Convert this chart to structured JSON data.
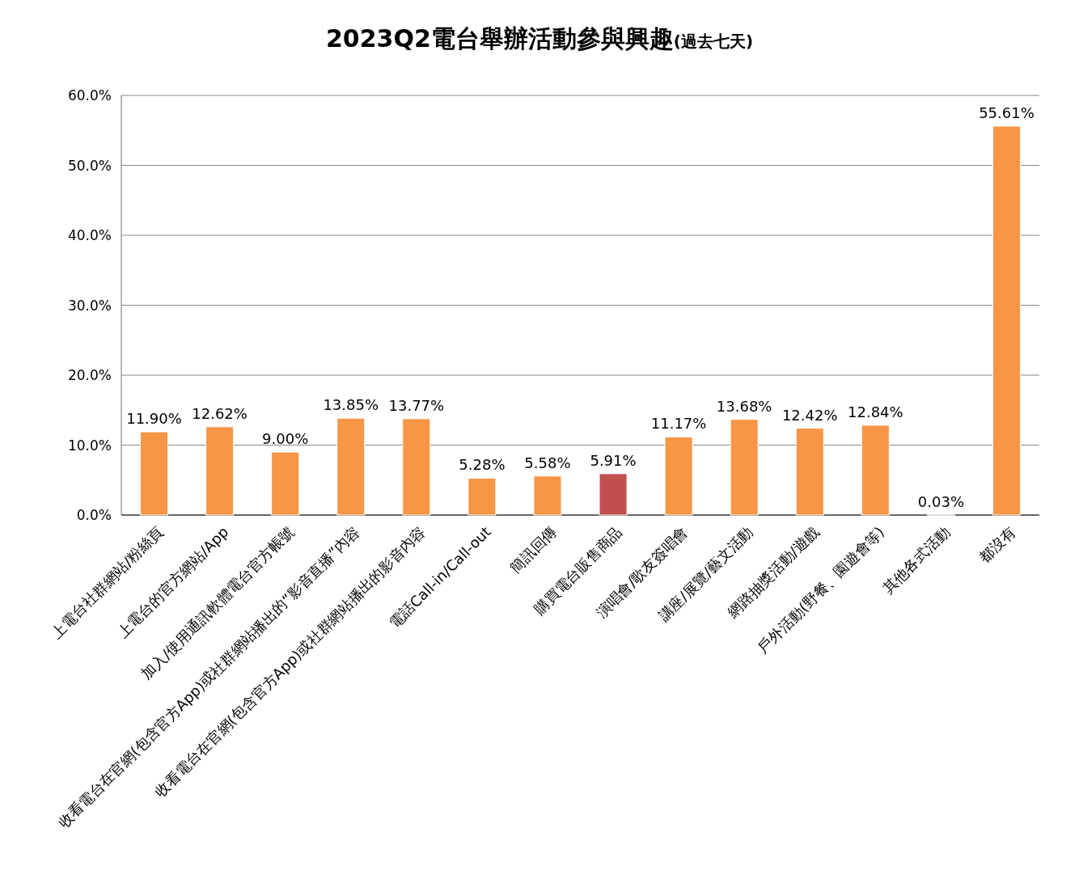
{
  "chart_data": {
    "type": "bar",
    "title": "2023Q2電台舉辦活動參與興趣",
    "subtitle": "(過去七天)",
    "categories": [
      "上電台社群網站/粉絲頁",
      "上電台的官方網站/App",
      "加入/使用通訊軟體電台官方帳號",
      "收看電台在官網(包含官方App)或社群網站播出的“影音直播”內容",
      "收看電台在官網(包含官方App)或社群網站播出的影音內容",
      "電話Call-in/Call-out",
      "簡訊回傳",
      "購買電台販售商品",
      "演唱會/歌友簽唱會",
      "講座/展覽/藝文活動",
      "網路抽獎活動/遊戲",
      "戶外活動(野餐、園遊會等)",
      "其他各式活動",
      "都沒有"
    ],
    "values": [
      11.9,
      12.62,
      9.0,
      13.85,
      13.77,
      5.28,
      5.58,
      5.91,
      11.17,
      13.68,
      12.42,
      12.84,
      0.03,
      55.61
    ],
    "value_labels": [
      "11.90%",
      "12.62%",
      "9.00%",
      "13.85%",
      "13.77%",
      "5.28%",
      "5.58%",
      "5.91%",
      "11.17%",
      "13.68%",
      "12.42%",
      "12.84%",
      "0.03%",
      "55.61%"
    ],
    "colors": [
      "#f79646",
      "#f79646",
      "#f79646",
      "#f79646",
      "#f79646",
      "#f79646",
      "#f79646",
      "#c0504d",
      "#f79646",
      "#f79646",
      "#f79646",
      "#f79646",
      "#f79646",
      "#f79646"
    ],
    "ylim": [
      0,
      60
    ],
    "yticks": [
      {
        "value": 0,
        "label": "0.0%"
      },
      {
        "value": 10,
        "label": "10.0%"
      },
      {
        "value": 20,
        "label": "20.0%"
      },
      {
        "value": 30,
        "label": "30.0%"
      },
      {
        "value": 40,
        "label": "40.0%"
      },
      {
        "value": 50,
        "label": "50.0%"
      },
      {
        "value": 60,
        "label": "60.0%"
      }
    ],
    "grid": "y"
  }
}
